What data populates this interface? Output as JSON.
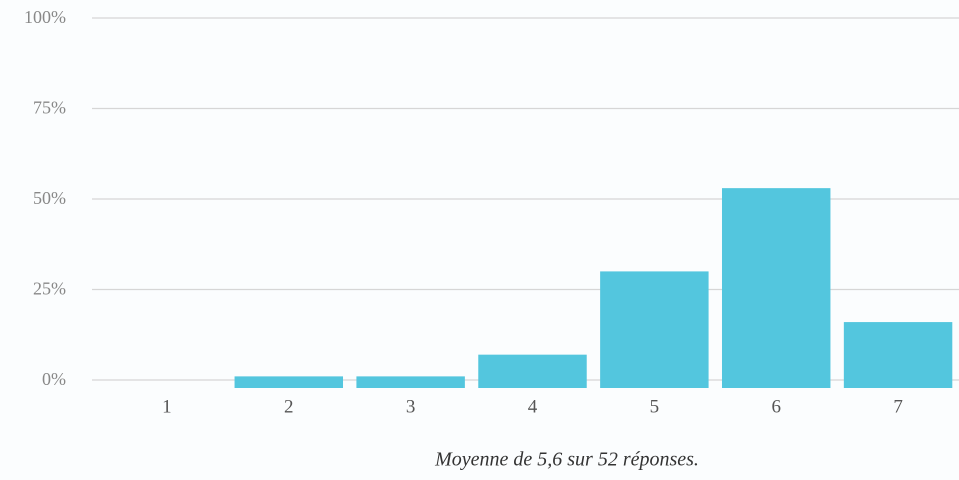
{
  "chart_data": {
    "type": "bar",
    "categories": [
      "1",
      "2",
      "3",
      "4",
      "5",
      "6",
      "7"
    ],
    "values": [
      0,
      1,
      1,
      7,
      30,
      53,
      16
    ],
    "color": "#53c6de",
    "ylim": [
      0,
      100
    ],
    "yticks": [
      {
        "value": 0,
        "label": "0%"
      },
      {
        "value": 25,
        "label": "25%"
      },
      {
        "value": 50,
        "label": "50%"
      },
      {
        "value": 75,
        "label": "75%"
      },
      {
        "value": 100,
        "label": "100%"
      }
    ],
    "grid": true,
    "annotation": "Moyenne de 5,6 sur 52 réponses."
  }
}
